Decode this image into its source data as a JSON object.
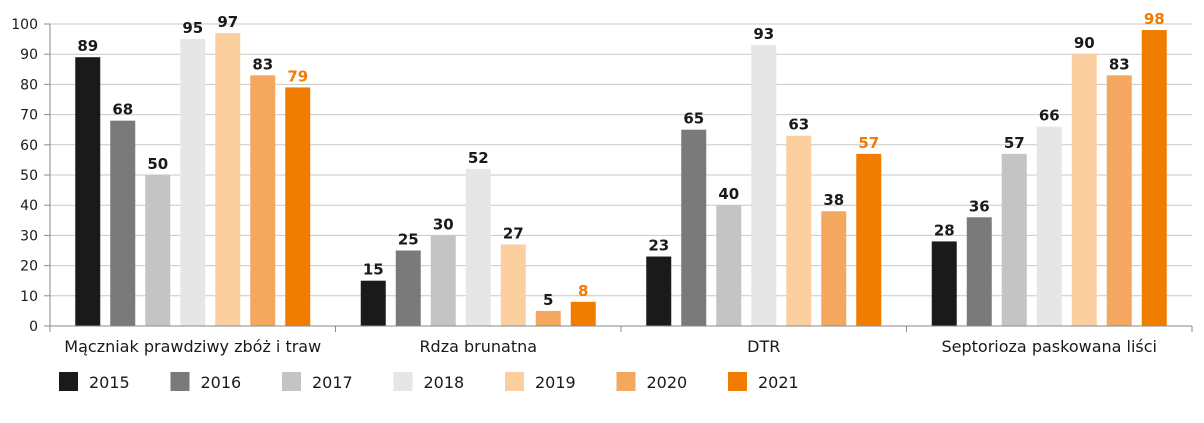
{
  "chart_data": {
    "type": "bar",
    "title": "",
    "xlabel": "",
    "ylabel": "",
    "ylim": [
      0,
      100
    ],
    "yticks": [
      0,
      10,
      20,
      30,
      40,
      50,
      60,
      70,
      80,
      90,
      100
    ],
    "grid": true,
    "legend_position": "bottom",
    "categories": [
      "Mączniak prawdziwy zbóż i traw",
      "Rdza brunatna",
      "DTR",
      "Septorioza paskowana liści"
    ],
    "series": [
      {
        "name": "2015",
        "color": "#1a1a1a",
        "label_color": "#1a1a1a",
        "values": [
          89,
          15,
          23,
          28
        ]
      },
      {
        "name": "2016",
        "color": "#7a7a7a",
        "label_color": "#1a1a1a",
        "values": [
          68,
          25,
          65,
          36
        ]
      },
      {
        "name": "2017",
        "color": "#c4c4c4",
        "label_color": "#1a1a1a",
        "values": [
          50,
          30,
          40,
          57
        ]
      },
      {
        "name": "2018",
        "color": "#e6e6e6",
        "label_color": "#1a1a1a",
        "values": [
          95,
          52,
          93,
          66
        ]
      },
      {
        "name": "2019",
        "color": "#fbcf9f",
        "label_color": "#1a1a1a",
        "values": [
          97,
          27,
          63,
          90
        ]
      },
      {
        "name": "2020",
        "color": "#f4a75e",
        "label_color": "#1a1a1a",
        "values": [
          83,
          5,
          38,
          83
        ]
      },
      {
        "name": "2021",
        "color": "#f07c00",
        "label_color": "#f07c00",
        "values": [
          79,
          8,
          57,
          98
        ]
      }
    ]
  }
}
